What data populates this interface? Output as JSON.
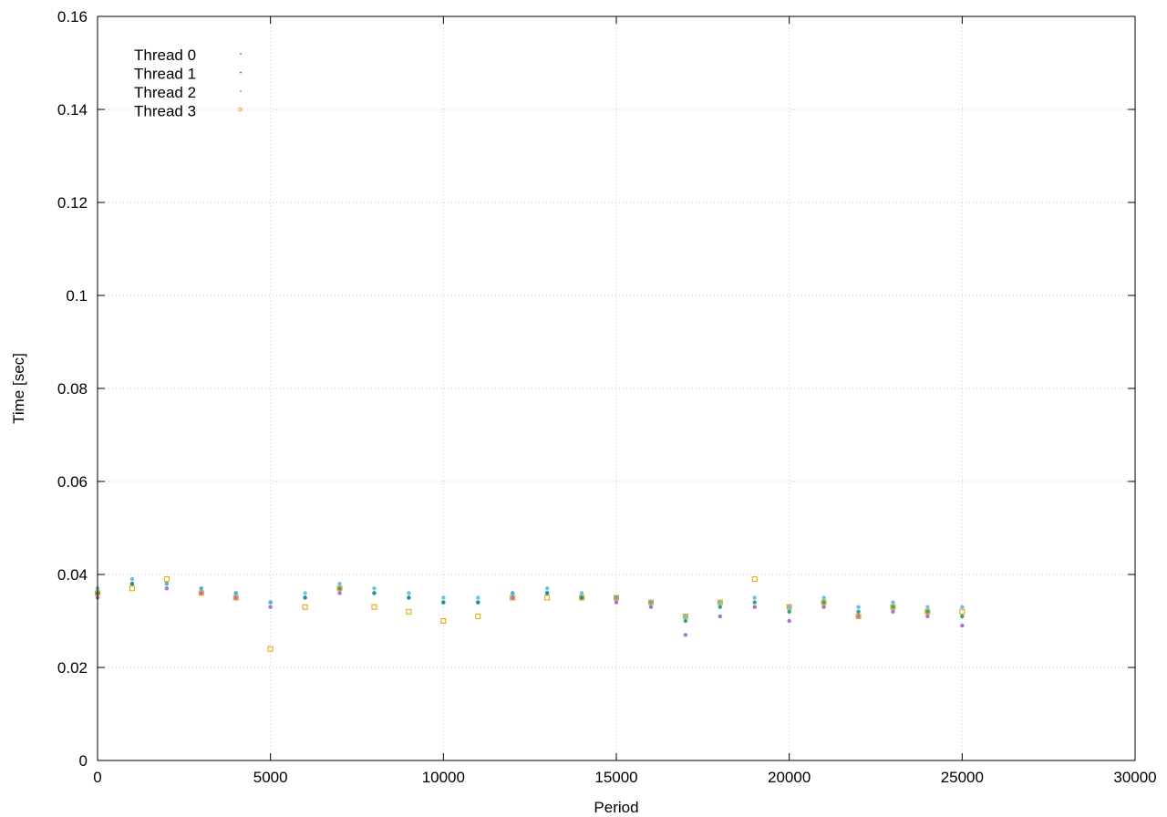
{
  "chart_data": {
    "type": "scatter",
    "title": "",
    "xlabel": "Period",
    "ylabel": "Time [sec]",
    "xlim": [
      0,
      30000
    ],
    "ylim": [
      0,
      0.16
    ],
    "xticks": [
      {
        "value": 0,
        "label": "0"
      },
      {
        "value": 5000,
        "label": "5000"
      },
      {
        "value": 10000,
        "label": "10000"
      },
      {
        "value": 15000,
        "label": "15000"
      },
      {
        "value": 20000,
        "label": "20000"
      },
      {
        "value": 25000,
        "label": "25000"
      },
      {
        "value": 30000,
        "label": "30000"
      }
    ],
    "yticks": [
      {
        "value": 0,
        "label": "0"
      },
      {
        "value": 0.02,
        "label": "0.02"
      },
      {
        "value": 0.04,
        "label": "0.04"
      },
      {
        "value": 0.06,
        "label": "0.06"
      },
      {
        "value": 0.08,
        "label": "0.08"
      },
      {
        "value": 0.1,
        "label": "0.1"
      },
      {
        "value": 0.12,
        "label": "0.12"
      },
      {
        "value": 0.14,
        "label": "0.14"
      },
      {
        "value": 0.16,
        "label": "0.16"
      }
    ],
    "grid": true,
    "legend_position": "top-left",
    "series": [
      {
        "name": "Thread 0",
        "color": "#9b59d0",
        "marker": "dot",
        "x": [
          0,
          1000,
          2000,
          3000,
          4000,
          5000,
          6000,
          7000,
          8000,
          9000,
          10000,
          11000,
          12000,
          13000,
          14000,
          15000,
          16000,
          17000,
          18000,
          19000,
          20000,
          21000,
          22000,
          23000,
          24000,
          25000
        ],
        "y": [
          0.035,
          0.038,
          0.037,
          0.036,
          0.035,
          0.033,
          0.035,
          0.036,
          0.036,
          0.035,
          0.034,
          0.034,
          0.035,
          0.036,
          0.035,
          0.034,
          0.033,
          0.027,
          0.031,
          0.033,
          0.03,
          0.033,
          0.031,
          0.032,
          0.031,
          0.029
        ]
      },
      {
        "name": "Thread 1",
        "color": "#009e73",
        "marker": "dot",
        "x": [
          0,
          1000,
          2000,
          3000,
          4000,
          5000,
          6000,
          7000,
          8000,
          9000,
          10000,
          11000,
          12000,
          13000,
          14000,
          15000,
          16000,
          17000,
          18000,
          19000,
          20000,
          21000,
          22000,
          23000,
          24000,
          25000
        ],
        "y": [
          0.036,
          0.038,
          0.038,
          0.037,
          0.036,
          0.034,
          0.035,
          0.037,
          0.036,
          0.035,
          0.034,
          0.034,
          0.036,
          0.036,
          0.035,
          0.035,
          0.034,
          0.03,
          0.033,
          0.034,
          0.032,
          0.034,
          0.032,
          0.033,
          0.032,
          0.031
        ]
      },
      {
        "name": "Thread 2",
        "color": "#56b4e9",
        "marker": "dot",
        "x": [
          0,
          1000,
          2000,
          3000,
          4000,
          5000,
          6000,
          7000,
          8000,
          9000,
          10000,
          11000,
          12000,
          13000,
          14000,
          15000,
          16000,
          17000,
          18000,
          19000,
          20000,
          21000,
          22000,
          23000,
          24000,
          25000
        ],
        "y": [
          0.037,
          0.039,
          0.038,
          0.037,
          0.036,
          0.034,
          0.036,
          0.038,
          0.037,
          0.036,
          0.035,
          0.035,
          0.036,
          0.037,
          0.036,
          0.035,
          0.034,
          0.031,
          0.034,
          0.035,
          0.033,
          0.035,
          0.033,
          0.034,
          0.033,
          0.033
        ]
      },
      {
        "name": "Thread 3",
        "color": "#e69f00",
        "marker": "square",
        "x": [
          0,
          1000,
          2000,
          3000,
          4000,
          5000,
          6000,
          7000,
          8000,
          9000,
          10000,
          11000,
          12000,
          13000,
          14000,
          15000,
          16000,
          17000,
          18000,
          19000,
          20000,
          21000,
          22000,
          23000,
          24000,
          25000
        ],
        "y": [
          0.036,
          0.037,
          0.039,
          0.036,
          0.035,
          0.024,
          0.033,
          0.037,
          0.033,
          0.032,
          0.03,
          0.031,
          0.035,
          0.035,
          0.035,
          0.035,
          0.034,
          0.031,
          0.034,
          0.039,
          0.033,
          0.034,
          0.031,
          0.033,
          0.032,
          0.032
        ]
      }
    ]
  }
}
